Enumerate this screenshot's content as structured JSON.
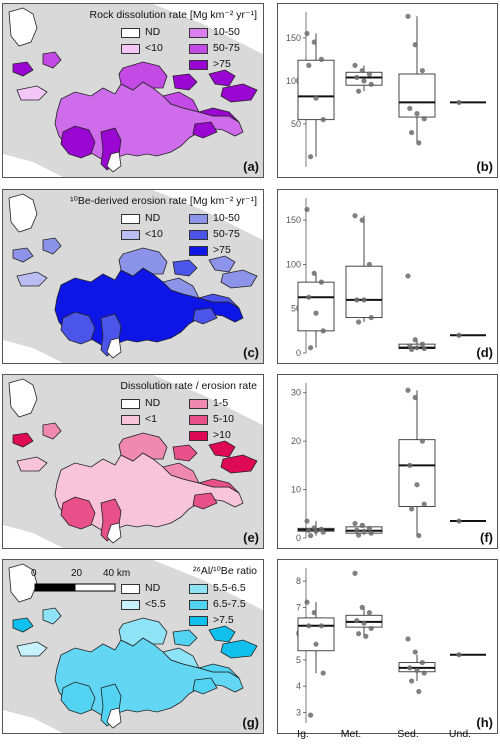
{
  "maps": [
    {
      "id": "a",
      "panel_label": "(a)",
      "legend_title": "Rock dissolution rate [Mg km⁻² yr⁻¹]",
      "legend": [
        {
          "label": "ND",
          "color": "#ffffff"
        },
        {
          "label": "<10",
          "color": "#f3c6f7"
        },
        {
          "label": "10-50",
          "color": "#dc7df0"
        },
        {
          "label": "50-75",
          "color": "#c44ae6"
        },
        {
          "label": ">75",
          "color": "#9a07d2"
        }
      ],
      "main_color": "#cf6cec"
    },
    {
      "id": "c",
      "panel_label": "(c)",
      "legend_title": "¹⁰Be-derived erosion rate [Mg km⁻² yr⁻¹]",
      "legend": [
        {
          "label": "ND",
          "color": "#ffffff"
        },
        {
          "label": "<10",
          "color": "#b9bdf2"
        },
        {
          "label": "10-50",
          "color": "#8c94ea"
        },
        {
          "label": "50-75",
          "color": "#4c55ea"
        },
        {
          "label": ">75",
          "color": "#0d16e6"
        }
      ],
      "main_color": "#1420e8"
    },
    {
      "id": "e",
      "panel_label": "(e)",
      "legend_title": "Dissolution rate / erosion rate",
      "legend": [
        {
          "label": "ND",
          "color": "#ffffff"
        },
        {
          "label": "<1",
          "color": "#f7c4d8"
        },
        {
          "label": "1-5",
          "color": "#ef8aae"
        },
        {
          "label": "5-10",
          "color": "#e8508a"
        },
        {
          "label": ">10",
          "color": "#df0a55"
        }
      ],
      "main_color": "#f7c4d8"
    },
    {
      "id": "g",
      "panel_label": "(g)",
      "legend_title": "²⁶Al/¹⁰Be ratio",
      "legend": [
        {
          "label": "ND",
          "color": "#ffffff"
        },
        {
          "label": "<5.5",
          "color": "#c8f2fb"
        },
        {
          "label": "5.5-6.5",
          "color": "#8ee4f6"
        },
        {
          "label": "6.5-7.5",
          "color": "#52d3f2"
        },
        {
          "label": ">7.5",
          "color": "#12c0ee"
        }
      ],
      "main_color": "#62d6f3",
      "scalebar": {
        "labels": [
          "0",
          "20",
          "40 km"
        ]
      }
    }
  ],
  "chart_data": [
    {
      "type": "box",
      "panel_label": "(b)",
      "categories": [
        "Ig.",
        "Met.",
        "Sed.",
        "Und."
      ],
      "ylim": [
        0,
        180
      ],
      "yticks": [
        50,
        100,
        150
      ],
      "boxes": [
        {
          "q1": 55,
          "median": 82,
          "q3": 124,
          "wlo": 12,
          "whi": 155
        },
        {
          "q1": 95,
          "median": 104,
          "q3": 110,
          "wlo": 88,
          "whi": 118
        },
        {
          "q1": 58,
          "median": 75,
          "q3": 108,
          "wlo": 28,
          "whi": 175
        },
        {
          "q1": 75,
          "median": 75,
          "q3": 75,
          "wlo": 75,
          "whi": 75
        }
      ],
      "points": [
        [
          155,
          145,
          125,
          118,
          80,
          55,
          12
        ],
        [
          118,
          112,
          108,
          104,
          100,
          96,
          88
        ],
        [
          175,
          142,
          112,
          68,
          62,
          56,
          40,
          28
        ],
        [
          75
        ]
      ]
    },
    {
      "type": "box",
      "panel_label": "(d)",
      "categories": [
        "Ig.",
        "Met.",
        "Sed.",
        "Und."
      ],
      "ylim": [
        0,
        175
      ],
      "yticks": [
        0,
        50,
        100,
        150
      ],
      "boxes": [
        {
          "q1": 25,
          "median": 63,
          "q3": 80,
          "wlo": 6,
          "whi": 90
        },
        {
          "q1": 40,
          "median": 60,
          "q3": 98,
          "wlo": 35,
          "whi": 155
        },
        {
          "q1": 5,
          "median": 6,
          "q3": 10,
          "wlo": 4,
          "whi": 15
        },
        {
          "q1": 20,
          "median": 20,
          "q3": 20,
          "wlo": 20,
          "whi": 20
        }
      ],
      "points": [
        [
          162,
          90,
          80,
          63,
          45,
          25,
          6
        ],
        [
          155,
          150,
          100,
          60,
          60,
          40,
          35
        ],
        [
          87,
          15,
          10,
          8,
          6,
          5,
          4
        ],
        [
          20
        ]
      ]
    },
    {
      "type": "box",
      "panel_label": "(f)",
      "categories": [
        "Ig.",
        "Met.",
        "Sed.",
        "Und."
      ],
      "ylim": [
        0,
        32
      ],
      "yticks": [
        0,
        10,
        20,
        30
      ],
      "boxes": [
        {
          "q1": 1.4,
          "median": 1.7,
          "q3": 2.0,
          "wlo": 0.5,
          "whi": 3.5
        },
        {
          "q1": 1.0,
          "median": 1.5,
          "q3": 2.3,
          "wlo": 0.6,
          "whi": 3.0
        },
        {
          "q1": 6.5,
          "median": 15,
          "q3": 20.3,
          "wlo": 0.5,
          "whi": 30.5
        },
        {
          "q1": 3.5,
          "median": 3.5,
          "q3": 3.5,
          "wlo": 3.5,
          "whi": 3.5
        }
      ],
      "points": [
        [
          3.5,
          2.1,
          1.8,
          1.6,
          1.4,
          1.2,
          0.5
        ],
        [
          3.0,
          2.6,
          2.0,
          1.6,
          1.4,
          1.0,
          0.6
        ],
        [
          30.5,
          29,
          20,
          15,
          11,
          7,
          6,
          0.5
        ],
        [
          3.5
        ]
      ]
    },
    {
      "type": "box",
      "panel_label": "(h)",
      "categories": [
        "Ig.",
        "Met.",
        "Sed.",
        "Und."
      ],
      "ylim": [
        2.6,
        8.5
      ],
      "yticks": [
        3,
        4,
        5,
        6,
        7,
        8
      ],
      "boxes": [
        {
          "q1": 5.35,
          "median": 6.3,
          "q3": 6.6,
          "wlo": 4.5,
          "whi": 7.2
        },
        {
          "q1": 6.25,
          "median": 6.45,
          "q3": 6.7,
          "wlo": 5.9,
          "whi": 7.0
        },
        {
          "q1": 4.55,
          "median": 4.7,
          "q3": 4.9,
          "wlo": 4.2,
          "whi": 5.2
        },
        {
          "q1": 5.2,
          "median": 5.2,
          "q3": 5.2,
          "wlo": 5.2,
          "whi": 5.2
        }
      ],
      "points": [
        [
          7.2,
          6.8,
          6.3,
          6.3,
          5.6,
          4.5,
          2.9
        ],
        [
          8.3,
          7.0,
          6.8,
          6.5,
          6.4,
          6.2,
          6.0,
          5.9
        ],
        [
          5.8,
          5.3,
          4.9,
          4.7,
          4.6,
          4.5,
          4.2,
          3.8
        ],
        [
          5.2
        ]
      ]
    }
  ],
  "x_labels": [
    "Ig.",
    "Met.",
    "Sed.",
    "Und."
  ]
}
